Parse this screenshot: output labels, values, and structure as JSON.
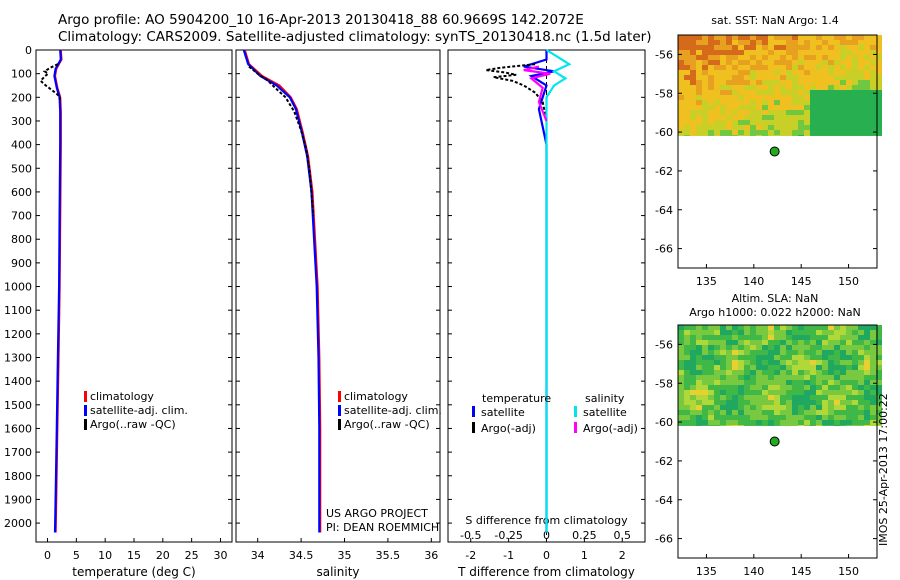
{
  "header": {
    "line1": "Argo profile: AO 5904200_10 16-Apr-2013 20130418_88 60.9669S 142.2072E",
    "line2": "Climatology: CARS2009. Satellite-adjusted climatology: synTS_20130418.nc (1.5d later)"
  },
  "stamp": "IMOS 25-Apr-2013 17:00:22",
  "colors": {
    "climatology": "#ff0000",
    "satellite": "#0000ff",
    "argo": "#000000",
    "salinity_satellite": "#00e5ee",
    "salinity_argo": "#ff00ff"
  },
  "chart_data": [
    {
      "type": "line",
      "id": "temperature",
      "xlabel": "temperature (deg C)",
      "ylabel": "",
      "xlim": [
        -2,
        32
      ],
      "ylim": [
        2080,
        0
      ],
      "xticks": [
        0,
        5,
        10,
        15,
        20,
        25,
        30
      ],
      "yticks": [
        0,
        100,
        200,
        300,
        400,
        500,
        600,
        700,
        800,
        900,
        1000,
        1100,
        1200,
        1300,
        1400,
        1500,
        1600,
        1700,
        1800,
        1900,
        2000
      ],
      "legend": [
        "climatology",
        "satellite-adj. clim.",
        "Argo(..raw -QC)"
      ],
      "series": [
        {
          "name": "climatology",
          "points": [
            [
              2.3,
              0
            ],
            [
              2.4,
              40
            ],
            [
              1.5,
              80
            ],
            [
              1.3,
              110
            ],
            [
              1.7,
              160
            ],
            [
              2.2,
              200
            ],
            [
              2.3,
              260
            ],
            [
              2.3,
              400
            ],
            [
              2.2,
              700
            ],
            [
              2.1,
              1000
            ],
            [
              1.9,
              1300
            ],
            [
              1.7,
              1600
            ],
            [
              1.5,
              1900
            ],
            [
              1.4,
              2040
            ]
          ]
        },
        {
          "name": "satellite-adj. clim.",
          "points": [
            [
              2.2,
              0
            ],
            [
              2.3,
              40
            ],
            [
              1.4,
              80
            ],
            [
              1.2,
              110
            ],
            [
              1.6,
              160
            ],
            [
              2.1,
              200
            ],
            [
              2.2,
              260
            ],
            [
              2.2,
              400
            ],
            [
              2.1,
              700
            ],
            [
              2.0,
              1000
            ],
            [
              1.8,
              1300
            ],
            [
              1.6,
              1600
            ],
            [
              1.4,
              1900
            ],
            [
              1.3,
              2040
            ]
          ]
        },
        {
          "name": "Argo(..raw -QC)",
          "points": [
            [
              1.8,
              60
            ],
            [
              0.5,
              75
            ],
            [
              -0.5,
              90
            ],
            [
              0.1,
              100
            ],
            [
              -0.4,
              110
            ],
            [
              -1.2,
              130
            ],
            [
              -0.3,
              150
            ],
            [
              0.8,
              170
            ],
            [
              1.8,
              190
            ],
            [
              2.2,
              210
            ]
          ]
        }
      ]
    },
    {
      "type": "line",
      "id": "salinity",
      "xlabel": "salinity",
      "ylabel": "",
      "xlim": [
        33.75,
        36.1
      ],
      "ylim": [
        2080,
        0
      ],
      "xticks": [
        34,
        34.5,
        35,
        35.5,
        36
      ],
      "legend": [
        "climatology",
        "satellite-adj. clim.",
        "Argo(..raw -QC)"
      ],
      "annotation": [
        "US ARGO PROJECT",
        "PI: DEAN ROEMMICH"
      ],
      "series": [
        {
          "name": "climatology",
          "points": [
            [
              33.85,
              0
            ],
            [
              33.9,
              60
            ],
            [
              34.05,
              110
            ],
            [
              34.25,
              150
            ],
            [
              34.38,
              200
            ],
            [
              34.45,
              250
            ],
            [
              34.52,
              350
            ],
            [
              34.58,
              450
            ],
            [
              34.63,
              600
            ],
            [
              34.66,
              800
            ],
            [
              34.69,
              1000
            ],
            [
              34.71,
              1300
            ],
            [
              34.72,
              1600
            ],
            [
              34.72,
              2040
            ]
          ]
        },
        {
          "name": "satellite-adj. clim.",
          "points": [
            [
              33.84,
              0
            ],
            [
              33.89,
              60
            ],
            [
              34.03,
              110
            ],
            [
              34.22,
              150
            ],
            [
              34.37,
              200
            ],
            [
              34.44,
              250
            ],
            [
              34.51,
              350
            ],
            [
              34.57,
              450
            ],
            [
              34.62,
              600
            ],
            [
              34.65,
              800
            ],
            [
              34.68,
              1000
            ],
            [
              34.7,
              1300
            ],
            [
              34.71,
              1600
            ],
            [
              34.71,
              2040
            ]
          ]
        },
        {
          "name": "Argo(..raw -QC)",
          "points": [
            [
              33.9,
              70
            ],
            [
              34.0,
              100
            ],
            [
              34.12,
              130
            ],
            [
              34.2,
              160
            ],
            [
              34.32,
              200
            ],
            [
              34.42,
              260
            ],
            [
              34.5,
              340
            ],
            [
              34.56,
              420
            ],
            [
              34.6,
              520
            ],
            [
              34.64,
              700
            ]
          ]
        }
      ]
    },
    {
      "type": "line",
      "id": "differences",
      "xlabel": "T difference from climatology",
      "xlabel2": "S difference from climatology",
      "xlim": [
        -2.6,
        2.6
      ],
      "ylim": [
        2080,
        0
      ],
      "xticks": [
        -2,
        -1,
        0,
        1,
        2
      ],
      "xticks2": [
        "-0.5",
        "-0.25",
        "0",
        "0.25",
        "0.5"
      ],
      "legend_temperature": {
        "title": "temperature",
        "items": [
          "satellite",
          "Argo(-adj)"
        ]
      },
      "legend_salinity": {
        "title": "salinity",
        "items": [
          "satellite",
          "Argo(-adj)"
        ]
      },
      "series": [
        {
          "name": "T satellite",
          "points": [
            [
              0,
              0
            ],
            [
              0,
              40
            ],
            [
              -0.6,
              70
            ],
            [
              0.2,
              90
            ],
            [
              -0.4,
              110
            ],
            [
              0,
              150
            ],
            [
              -0.2,
              250
            ],
            [
              0,
              400
            ],
            [
              0,
              2040
            ]
          ]
        },
        {
          "name": "T Argo(-adj)",
          "points": [
            [
              -0.3,
              60
            ],
            [
              -1.2,
              75
            ],
            [
              -1.6,
              85
            ],
            [
              -1.1,
              95
            ],
            [
              -0.8,
              105
            ],
            [
              -1.4,
              115
            ],
            [
              -0.9,
              130
            ],
            [
              -0.6,
              150
            ],
            [
              -0.3,
              180
            ],
            [
              -0.1,
              220
            ],
            [
              0,
              300
            ]
          ]
        },
        {
          "name": "S satellite",
          "points": [
            [
              0,
              0
            ],
            [
              0.3,
              30
            ],
            [
              0.6,
              60
            ],
            [
              0.2,
              90
            ],
            [
              0.5,
              120
            ],
            [
              0.2,
              150
            ],
            [
              0,
              200
            ],
            [
              0,
              2040
            ]
          ]
        },
        {
          "name": "S Argo(-adj)",
          "points": [
            [
              -0.2,
              70
            ],
            [
              -0.6,
              85
            ],
            [
              0.1,
              100
            ],
            [
              -0.4,
              120
            ],
            [
              -0.1,
              160
            ],
            [
              -0.2,
              220
            ],
            [
              0,
              300
            ]
          ]
        }
      ]
    },
    {
      "type": "heatmap",
      "id": "sst_map",
      "title": "sat. SST: NaN Argo: 1.4",
      "xlim": [
        132,
        153
      ],
      "ylim": [
        -67,
        -55
      ],
      "xticks": [
        135,
        140,
        145,
        150
      ],
      "yticks": [
        -56,
        -58,
        -60,
        -62,
        -64,
        -66
      ],
      "argo_position": [
        142.2,
        -61
      ]
    },
    {
      "type": "heatmap",
      "id": "sla_map",
      "title": "Altim. SLA: NaN",
      "subtitle": "Argo h1000: 0.022 h2000: NaN",
      "xlim": [
        132,
        153
      ],
      "ylim": [
        -67,
        -55
      ],
      "xticks": [
        135,
        140,
        145,
        150
      ],
      "yticks": [
        -56,
        -58,
        -60,
        -62,
        -64,
        -66
      ],
      "argo_position": [
        142.2,
        -61
      ]
    }
  ]
}
